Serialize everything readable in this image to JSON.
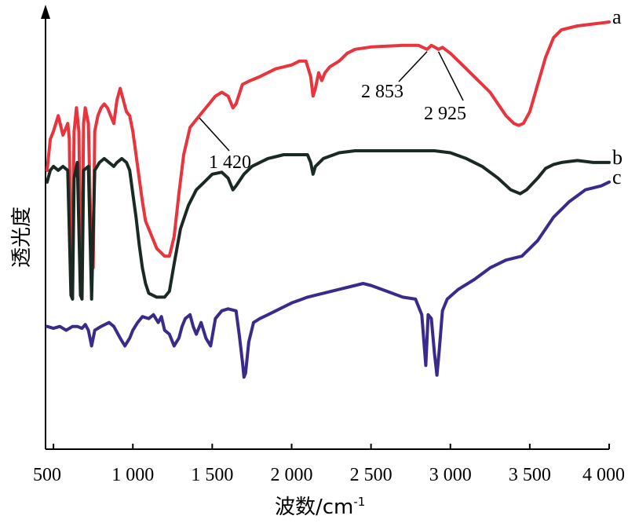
{
  "chart_data": {
    "type": "line",
    "xlabel": "波数/cm",
    "xlabel_sup": "-1",
    "ylabel": "透光度",
    "xlim": [
      450,
      4000
    ],
    "ylim": [
      0,
      100
    ],
    "x_ticks": [
      {
        "value": 500,
        "label": "500"
      },
      {
        "value": 1000,
        "label": "1 000"
      },
      {
        "value": 1500,
        "label": "1 500"
      },
      {
        "value": 2000,
        "label": "2 000"
      },
      {
        "value": 2500,
        "label": "2 500"
      },
      {
        "value": 3000,
        "label": "3 000"
      },
      {
        "value": 3500,
        "label": "3 500"
      },
      {
        "value": 4000,
        "label": "4 000"
      }
    ],
    "grid": false,
    "series": [
      {
        "name": "a",
        "color": "#e8343c",
        "points": [
          [
            460,
            62
          ],
          [
            480,
            70
          ],
          [
            500,
            72
          ],
          [
            530,
            76
          ],
          [
            560,
            71
          ],
          [
            590,
            74
          ],
          [
            600,
            70
          ],
          [
            610,
            40
          ],
          [
            620,
            39
          ],
          [
            630,
            72
          ],
          [
            645,
            78
          ],
          [
            660,
            72
          ],
          [
            670,
            40
          ],
          [
            680,
            39
          ],
          [
            690,
            74
          ],
          [
            700,
            78
          ],
          [
            720,
            74
          ],
          [
            740,
            38
          ],
          [
            750,
            37
          ],
          [
            760,
            72
          ],
          [
            780,
            76
          ],
          [
            800,
            78
          ],
          [
            820,
            79
          ],
          [
            840,
            78
          ],
          [
            860,
            76
          ],
          [
            880,
            74
          ],
          [
            900,
            80
          ],
          [
            920,
            83
          ],
          [
            940,
            80
          ],
          [
            960,
            77
          ],
          [
            980,
            76
          ],
          [
            1000,
            72
          ],
          [
            1020,
            66
          ],
          [
            1040,
            60
          ],
          [
            1060,
            54
          ],
          [
            1080,
            49
          ],
          [
            1100,
            47
          ],
          [
            1150,
            42
          ],
          [
            1200,
            40
          ],
          [
            1230,
            40
          ],
          [
            1260,
            45
          ],
          [
            1290,
            56
          ],
          [
            1320,
            66
          ],
          [
            1360,
            73
          ],
          [
            1400,
            75
          ],
          [
            1440,
            77
          ],
          [
            1480,
            79
          ],
          [
            1520,
            81
          ],
          [
            1560,
            82
          ],
          [
            1600,
            81
          ],
          [
            1630,
            78
          ],
          [
            1650,
            79
          ],
          [
            1690,
            84
          ],
          [
            1740,
            85
          ],
          [
            1800,
            86
          ],
          [
            1850,
            87
          ],
          [
            1900,
            88
          ],
          [
            1950,
            88.5
          ],
          [
            2000,
            89
          ],
          [
            2050,
            90
          ],
          [
            2090,
            90
          ],
          [
            2120,
            86
          ],
          [
            2135,
            81
          ],
          [
            2150,
            83
          ],
          [
            2170,
            87
          ],
          [
            2190,
            85
          ],
          [
            2210,
            87
          ],
          [
            2240,
            88.5
          ],
          [
            2300,
            90
          ],
          [
            2350,
            92
          ],
          [
            2400,
            93
          ],
          [
            2450,
            93.3
          ],
          [
            2500,
            93.6
          ],
          [
            2600,
            93.8
          ],
          [
            2700,
            94
          ],
          [
            2800,
            94
          ],
          [
            2853,
            93
          ],
          [
            2880,
            94
          ],
          [
            2925,
            93
          ],
          [
            2950,
            93.5
          ],
          [
            3000,
            92
          ],
          [
            3050,
            90
          ],
          [
            3100,
            88
          ],
          [
            3150,
            86
          ],
          [
            3200,
            84
          ],
          [
            3250,
            82
          ],
          [
            3300,
            79
          ],
          [
            3350,
            76
          ],
          [
            3400,
            74
          ],
          [
            3430,
            73.5
          ],
          [
            3460,
            74
          ],
          [
            3500,
            77
          ],
          [
            3550,
            84
          ],
          [
            3600,
            91
          ],
          [
            3650,
            96
          ],
          [
            3700,
            98
          ],
          [
            3800,
            99
          ],
          [
            3900,
            99.5
          ],
          [
            4000,
            100
          ]
        ]
      },
      {
        "name": "b",
        "color": "#1a2a22",
        "points": [
          [
            460,
            59
          ],
          [
            480,
            62
          ],
          [
            500,
            63
          ],
          [
            530,
            62
          ],
          [
            560,
            63
          ],
          [
            590,
            62
          ],
          [
            610,
            30
          ],
          [
            620,
            29
          ],
          [
            630,
            60
          ],
          [
            650,
            64
          ],
          [
            670,
            30
          ],
          [
            680,
            29
          ],
          [
            690,
            62
          ],
          [
            720,
            63
          ],
          [
            740,
            29
          ],
          [
            760,
            62
          ],
          [
            790,
            64
          ],
          [
            820,
            65
          ],
          [
            850,
            64
          ],
          [
            880,
            63
          ],
          [
            900,
            64
          ],
          [
            930,
            65
          ],
          [
            960,
            64
          ],
          [
            980,
            62
          ],
          [
            1000,
            56
          ],
          [
            1020,
            50
          ],
          [
            1040,
            43
          ],
          [
            1060,
            37
          ],
          [
            1080,
            33
          ],
          [
            1100,
            30.5
          ],
          [
            1150,
            29.5
          ],
          [
            1200,
            29.5
          ],
          [
            1230,
            31
          ],
          [
            1260,
            38
          ],
          [
            1300,
            47
          ],
          [
            1350,
            53
          ],
          [
            1400,
            57
          ],
          [
            1450,
            59
          ],
          [
            1500,
            61
          ],
          [
            1560,
            61.5
          ],
          [
            1600,
            60
          ],
          [
            1630,
            57
          ],
          [
            1650,
            58
          ],
          [
            1700,
            61
          ],
          [
            1750,
            63
          ],
          [
            1800,
            64
          ],
          [
            1850,
            65
          ],
          [
            1900,
            65.5
          ],
          [
            1950,
            66
          ],
          [
            2000,
            66
          ],
          [
            2050,
            66
          ],
          [
            2100,
            66
          ],
          [
            2120,
            64
          ],
          [
            2135,
            61
          ],
          [
            2150,
            63
          ],
          [
            2200,
            65
          ],
          [
            2300,
            66.5
          ],
          [
            2400,
            67
          ],
          [
            2500,
            67
          ],
          [
            2700,
            67
          ],
          [
            2900,
            67
          ],
          [
            3000,
            66.5
          ],
          [
            3100,
            65
          ],
          [
            3200,
            63
          ],
          [
            3300,
            60
          ],
          [
            3380,
            57
          ],
          [
            3440,
            56
          ],
          [
            3480,
            57
          ],
          [
            3550,
            60
          ],
          [
            3600,
            62.5
          ],
          [
            3650,
            63.5
          ],
          [
            3700,
            64
          ],
          [
            3800,
            64.5
          ],
          [
            3900,
            64
          ],
          [
            4000,
            64
          ]
        ]
      },
      {
        "name": "c",
        "color": "#3a2a8c",
        "points": [
          [
            460,
            22
          ],
          [
            500,
            21.5
          ],
          [
            540,
            22
          ],
          [
            580,
            21
          ],
          [
            620,
            22
          ],
          [
            650,
            22
          ],
          [
            680,
            21.5
          ],
          [
            700,
            22.5
          ],
          [
            720,
            21
          ],
          [
            740,
            17
          ],
          [
            760,
            21
          ],
          [
            800,
            22
          ],
          [
            850,
            23
          ],
          [
            880,
            22
          ],
          [
            920,
            19
          ],
          [
            950,
            17
          ],
          [
            980,
            19
          ],
          [
            1000,
            21
          ],
          [
            1030,
            23
          ],
          [
            1060,
            24.5
          ],
          [
            1100,
            24
          ],
          [
            1130,
            25
          ],
          [
            1160,
            23
          ],
          [
            1180,
            24.5
          ],
          [
            1200,
            21
          ],
          [
            1230,
            20
          ],
          [
            1260,
            17
          ],
          [
            1290,
            19
          ],
          [
            1310,
            22
          ],
          [
            1330,
            24
          ],
          [
            1360,
            25
          ],
          [
            1380,
            22
          ],
          [
            1400,
            20
          ],
          [
            1430,
            23
          ],
          [
            1460,
            19
          ],
          [
            1490,
            17
          ],
          [
            1520,
            24
          ],
          [
            1560,
            26
          ],
          [
            1600,
            26.5
          ],
          [
            1650,
            26
          ],
          [
            1670,
            20
          ],
          [
            1690,
            13
          ],
          [
            1700,
            9
          ],
          [
            1710,
            10
          ],
          [
            1730,
            18
          ],
          [
            1760,
            23
          ],
          [
            1800,
            24
          ],
          [
            1850,
            25
          ],
          [
            1900,
            26
          ],
          [
            2000,
            28
          ],
          [
            2100,
            29.5
          ],
          [
            2200,
            30.5
          ],
          [
            2300,
            31.5
          ],
          [
            2400,
            32.5
          ],
          [
            2450,
            33
          ],
          [
            2500,
            32.5
          ],
          [
            2600,
            31
          ],
          [
            2700,
            29.5
          ],
          [
            2780,
            29
          ],
          [
            2820,
            25
          ],
          [
            2845,
            12
          ],
          [
            2860,
            25
          ],
          [
            2880,
            24
          ],
          [
            2900,
            15
          ],
          [
            2915,
            9.5
          ],
          [
            2930,
            16
          ],
          [
            2950,
            26
          ],
          [
            2980,
            29
          ],
          [
            3050,
            31.5
          ],
          [
            3150,
            34
          ],
          [
            3250,
            37
          ],
          [
            3350,
            39
          ],
          [
            3450,
            40
          ],
          [
            3500,
            42
          ],
          [
            3550,
            44
          ],
          [
            3600,
            47
          ],
          [
            3650,
            50
          ],
          [
            3700,
            52
          ],
          [
            3750,
            54
          ],
          [
            3800,
            55.5
          ],
          [
            3850,
            57
          ],
          [
            3900,
            57.5
          ],
          [
            3950,
            58
          ],
          [
            4000,
            59
          ]
        ]
      }
    ],
    "annotations": [
      {
        "text": "2 853",
        "x": 2853,
        "y": 93
      },
      {
        "text": "2 925",
        "x": 2925,
        "y": 93
      },
      {
        "text": "1 420",
        "x": 1420,
        "y": 76
      }
    ],
    "series_labels": [
      "a",
      "b",
      "c"
    ]
  }
}
